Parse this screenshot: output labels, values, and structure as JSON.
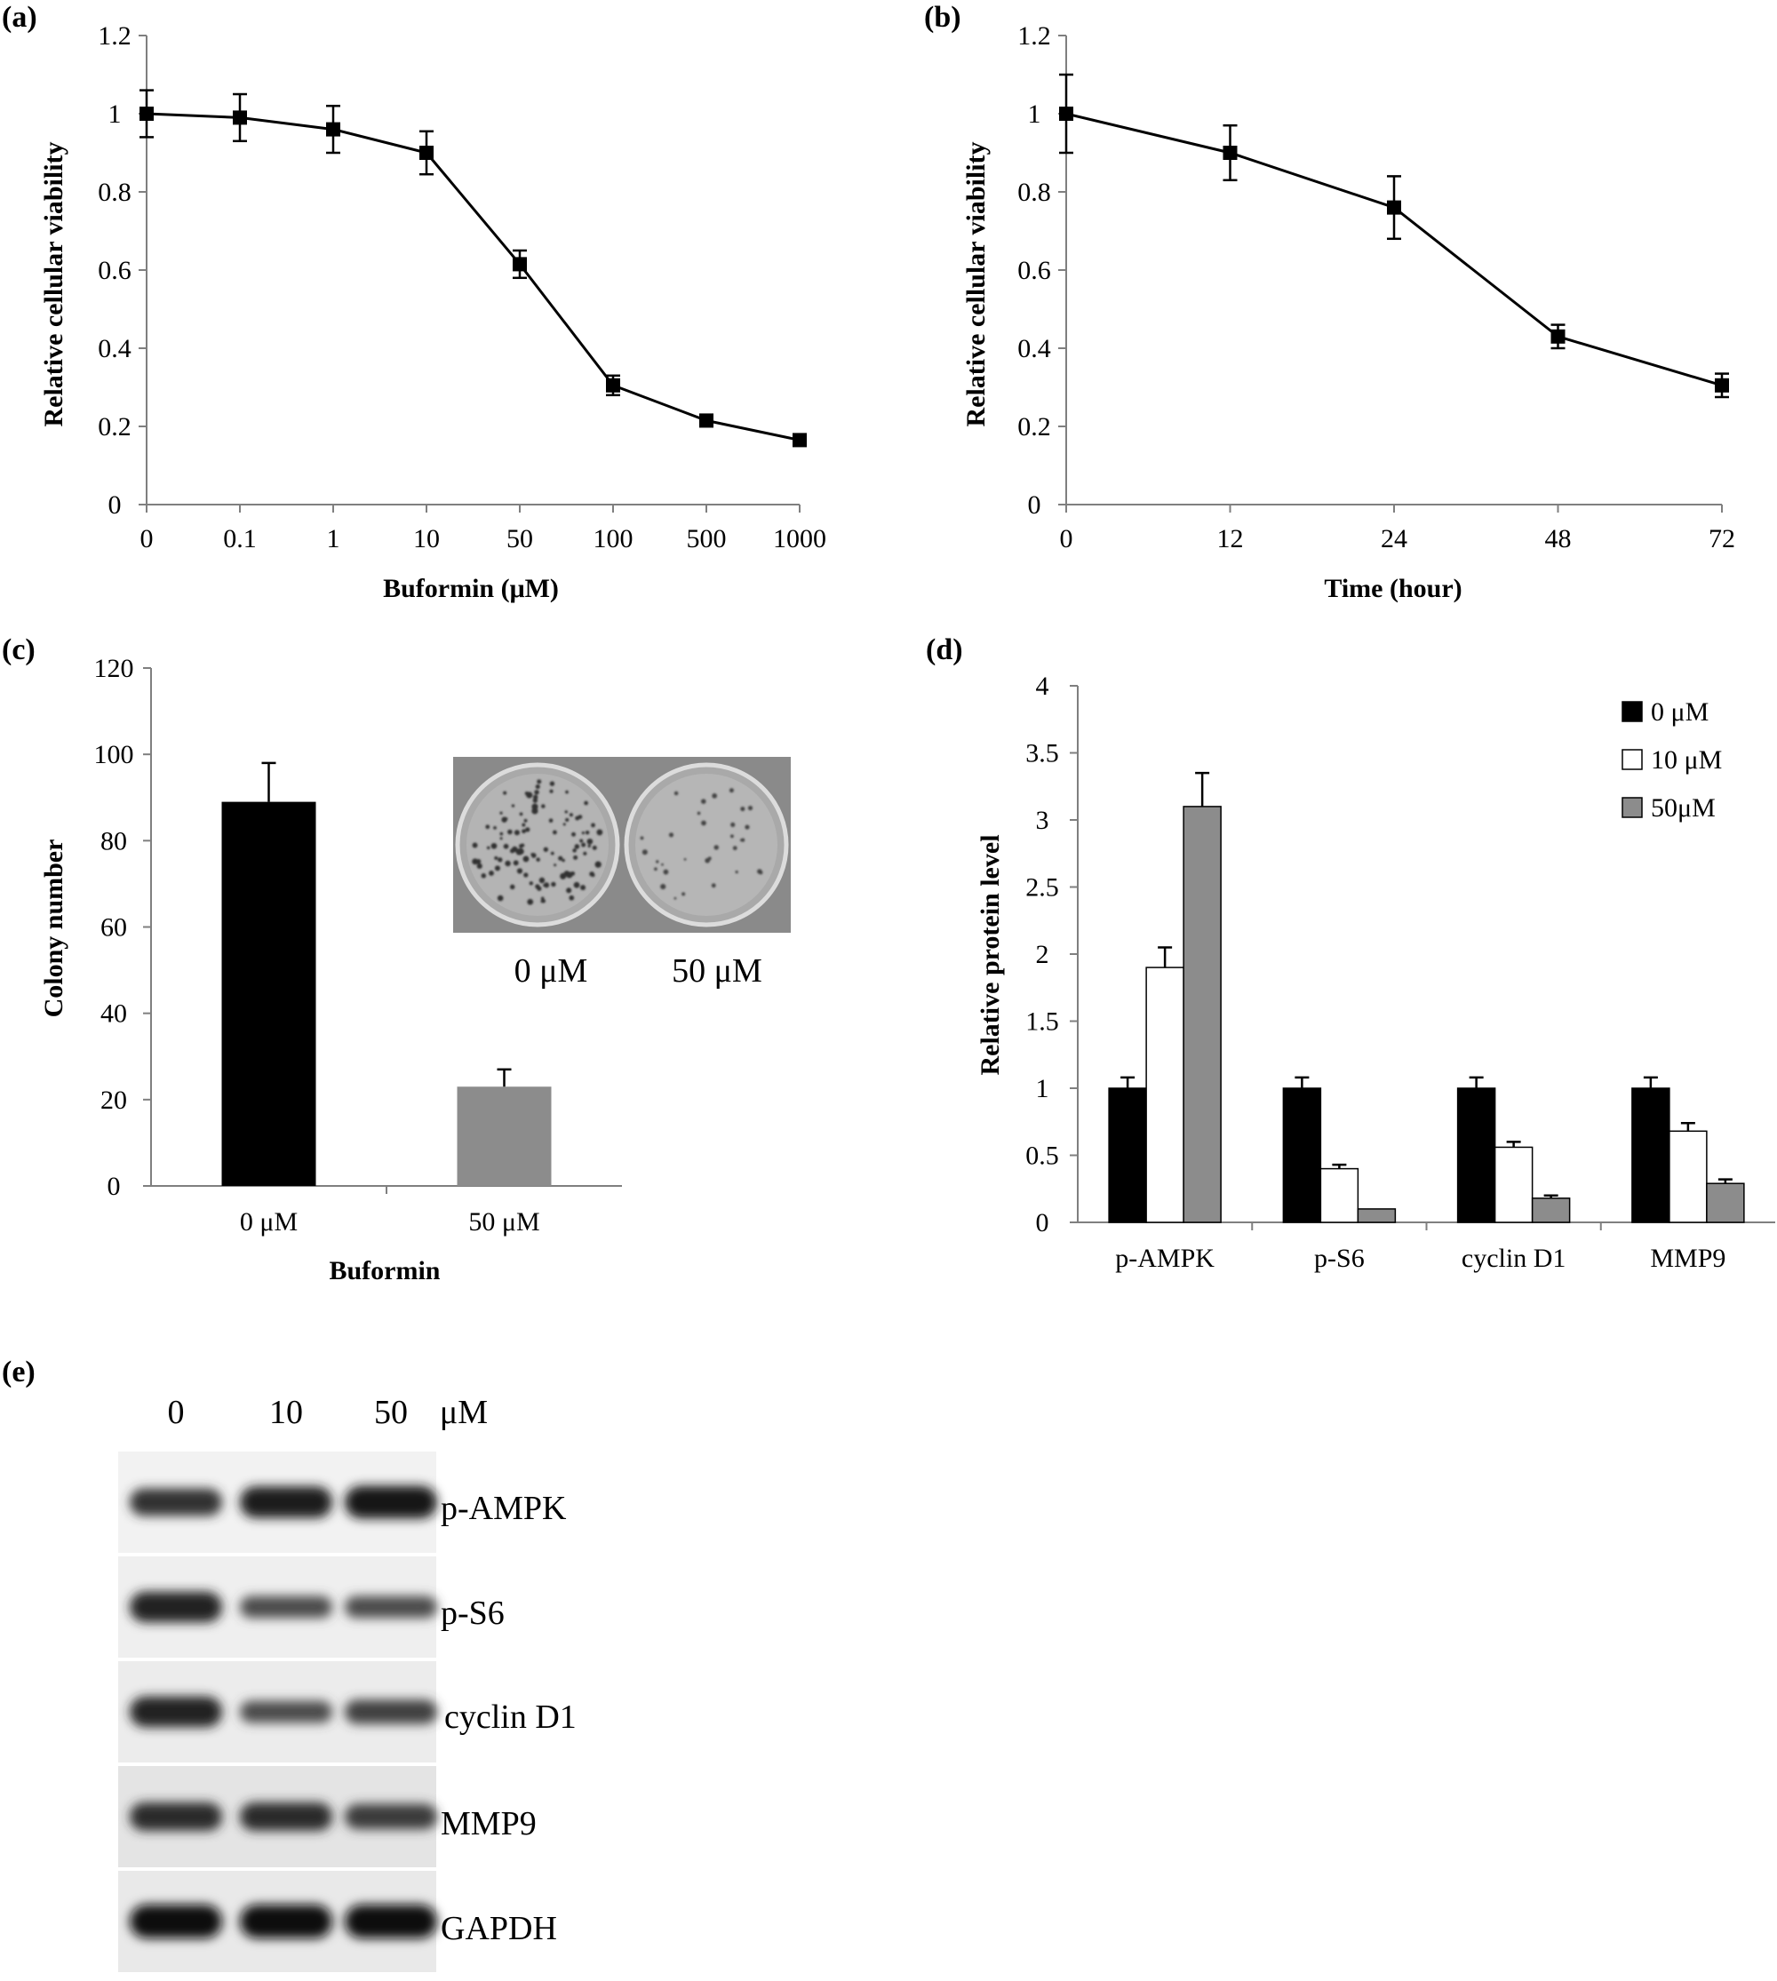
{
  "chart_data": [
    {
      "panel": "(a)",
      "type": "line",
      "categories": [
        "0",
        "0.1",
        "1",
        "10",
        "50",
        "100",
        "500",
        "1000"
      ],
      "values": [
        1.0,
        0.99,
        0.96,
        0.9,
        0.615,
        0.305,
        0.215,
        0.165
      ],
      "errors": [
        0.06,
        0.06,
        0.06,
        0.055,
        0.035,
        0.025,
        0.015,
        0.01
      ],
      "xlabel": "Buformin (μM)",
      "ylabel": "Relative cellular viability",
      "ylim": [
        0,
        1.2
      ],
      "yticks": [
        "0",
        "0.2",
        "0.4",
        "0.6",
        "0.8",
        "1",
        "1.2"
      ],
      "grid": false
    },
    {
      "panel": "(b)",
      "type": "line",
      "categories": [
        "0",
        "12",
        "24",
        "48",
        "72"
      ],
      "values": [
        1.0,
        0.9,
        0.76,
        0.43,
        0.305
      ],
      "errors": [
        0.1,
        0.07,
        0.08,
        0.03,
        0.03
      ],
      "xlabel": "Time (hour)",
      "ylabel": "Relative cellular viability",
      "ylim": [
        0,
        1.2
      ],
      "yticks": [
        "0",
        "0.2",
        "0.4",
        "0.6",
        "0.8",
        "1",
        "1.2"
      ],
      "grid": false
    },
    {
      "panel": "(c)",
      "type": "bar",
      "categories": [
        "0 μM",
        "50 μM"
      ],
      "values": [
        89,
        23
      ],
      "errors": [
        9,
        4
      ],
      "colors": [
        "#000000",
        "#8c8c8c"
      ],
      "xlabel": "Buformin",
      "ylabel": "Colony number",
      "ylim": [
        0,
        120
      ],
      "yticks": [
        "0",
        "20",
        "40",
        "60",
        "80",
        "100",
        "120"
      ],
      "inset_labels": [
        "0 μM",
        "50 μM"
      ],
      "grid": false
    },
    {
      "panel": "(d)",
      "type": "bar",
      "categories": [
        "p-AMPK",
        "p-S6",
        "cyclin D1",
        "MMP9"
      ],
      "series": [
        {
          "name": "0 μM",
          "color": "#000000",
          "values": [
            1.0,
            1.0,
            1.0,
            1.0
          ],
          "errors": [
            0.08,
            0.08,
            0.08,
            0.08
          ]
        },
        {
          "name": "10 μM",
          "color": "#ffffff",
          "values": [
            1.9,
            0.4,
            0.56,
            0.68
          ],
          "errors": [
            0.15,
            0.03,
            0.04,
            0.06
          ]
        },
        {
          "name": "50μM",
          "color": "#8c8c8c",
          "values": [
            3.1,
            0.1,
            0.18,
            0.29
          ],
          "errors": [
            0.25,
            0.0,
            0.02,
            0.03
          ]
        }
      ],
      "ylabel": "Relative protein level",
      "ylim": [
        0,
        4
      ],
      "yticks": [
        "0",
        "0.5",
        "1",
        "1.5",
        "2",
        "2.5",
        "3",
        "3.5",
        "4"
      ],
      "legend_position": "top-right",
      "grid": false
    }
  ],
  "panel_e": {
    "label": "(e)",
    "lane_labels": [
      "0",
      "10",
      "50"
    ],
    "unit": "μM",
    "bands": [
      {
        "name": "p-AMPK",
        "intensity": [
          0.7,
          0.9,
          0.95
        ]
      },
      {
        "name": "p-S6",
        "intensity": [
          0.85,
          0.45,
          0.45
        ]
      },
      {
        "name": "cyclin D1",
        "intensity": [
          0.85,
          0.45,
          0.55
        ]
      },
      {
        "name": "MMP9",
        "intensity": [
          0.75,
          0.75,
          0.6
        ]
      },
      {
        "name": "GAPDH",
        "intensity": [
          1.0,
          1.0,
          1.0
        ]
      }
    ]
  }
}
